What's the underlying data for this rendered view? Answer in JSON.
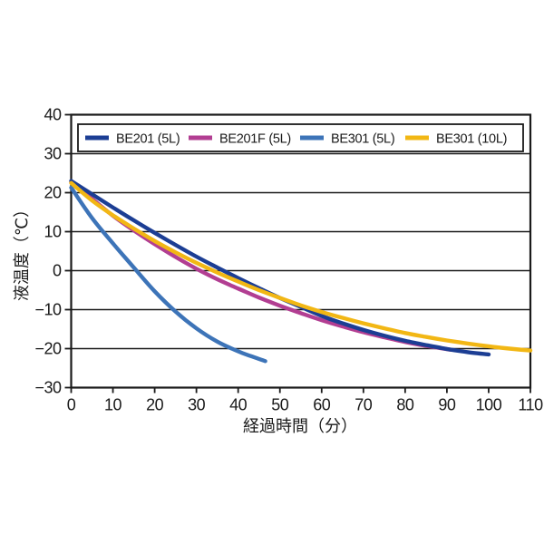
{
  "chart_data": {
    "type": "line",
    "title": "",
    "xlabel": "経過時間（分）",
    "ylabel": "液温度（℃）",
    "xlim": [
      0,
      110
    ],
    "ylim": [
      -30,
      40
    ],
    "xticks": [
      0,
      10,
      20,
      30,
      40,
      50,
      60,
      70,
      80,
      90,
      100,
      110
    ],
    "yticks": [
      40,
      30,
      20,
      10,
      0,
      -10,
      -20,
      -30
    ],
    "grid": "horizontal-only",
    "legend_position": "top-inside-box",
    "axis_color": "#1a1a1a",
    "series": [
      {
        "name": "BE201 (5L)",
        "color": "#1c3e94",
        "points": [
          [
            0,
            23
          ],
          [
            5,
            19.6
          ],
          [
            10,
            16.2
          ],
          [
            15,
            12.9
          ],
          [
            20,
            9.7
          ],
          [
            25,
            6.6
          ],
          [
            30,
            3.6
          ],
          [
            35,
            0.8
          ],
          [
            40,
            -1.9
          ],
          [
            45,
            -4.5
          ],
          [
            50,
            -7.0
          ],
          [
            55,
            -9.3
          ],
          [
            60,
            -11.6
          ],
          [
            65,
            -13.5
          ],
          [
            70,
            -15.2
          ],
          [
            75,
            -16.7
          ],
          [
            80,
            -18.0
          ],
          [
            85,
            -19.1
          ],
          [
            90,
            -20.1
          ],
          [
            95,
            -20.9
          ],
          [
            100,
            -21.5
          ]
        ]
      },
      {
        "name": "BE201F (5L)",
        "color": "#b23e92",
        "points": [
          [
            0,
            22.7
          ],
          [
            5,
            18.4
          ],
          [
            10,
            14.1
          ],
          [
            15,
            10.3
          ],
          [
            20,
            6.8
          ],
          [
            25,
            3.5
          ],
          [
            30,
            0.5
          ],
          [
            35,
            -2.2
          ],
          [
            40,
            -4.6
          ],
          [
            45,
            -6.9
          ],
          [
            50,
            -9.0
          ],
          [
            55,
            -10.9
          ],
          [
            60,
            -12.7
          ],
          [
            65,
            -14.3
          ],
          [
            70,
            -15.8
          ],
          [
            75,
            -17.1
          ],
          [
            80,
            -18.3
          ],
          [
            85,
            -19.3
          ],
          [
            91,
            -20.3
          ]
        ]
      },
      {
        "name": "BE301 (5L)",
        "color": "#3d74b8",
        "points": [
          [
            0,
            21.3
          ],
          [
            5,
            13.5
          ],
          [
            10,
            7.0
          ],
          [
            15,
            0.8
          ],
          [
            20,
            -5.3
          ],
          [
            25,
            -10.5
          ],
          [
            30,
            -14.8
          ],
          [
            35,
            -18.2
          ],
          [
            40,
            -20.7
          ],
          [
            43,
            -21.9
          ],
          [
            46.5,
            -23.2
          ]
        ]
      },
      {
        "name": "BE301 (10L)",
        "color": "#f2b714",
        "points": [
          [
            0,
            22.5
          ],
          [
            5,
            18.0
          ],
          [
            10,
            14.2
          ],
          [
            15,
            10.8
          ],
          [
            20,
            7.6
          ],
          [
            25,
            4.7
          ],
          [
            30,
            2.0
          ],
          [
            35,
            -0.5
          ],
          [
            40,
            -2.8
          ],
          [
            45,
            -5.0
          ],
          [
            50,
            -7.0
          ],
          [
            55,
            -8.9
          ],
          [
            60,
            -10.6
          ],
          [
            65,
            -12.1
          ],
          [
            70,
            -13.5
          ],
          [
            75,
            -14.8
          ],
          [
            80,
            -16.0
          ],
          [
            85,
            -17.0
          ],
          [
            90,
            -17.9
          ],
          [
            95,
            -18.7
          ],
          [
            100,
            -19.4
          ],
          [
            105,
            -20.0
          ],
          [
            110,
            -20.5
          ]
        ]
      }
    ],
    "draw_order": [
      1,
      2,
      0,
      3
    ]
  }
}
